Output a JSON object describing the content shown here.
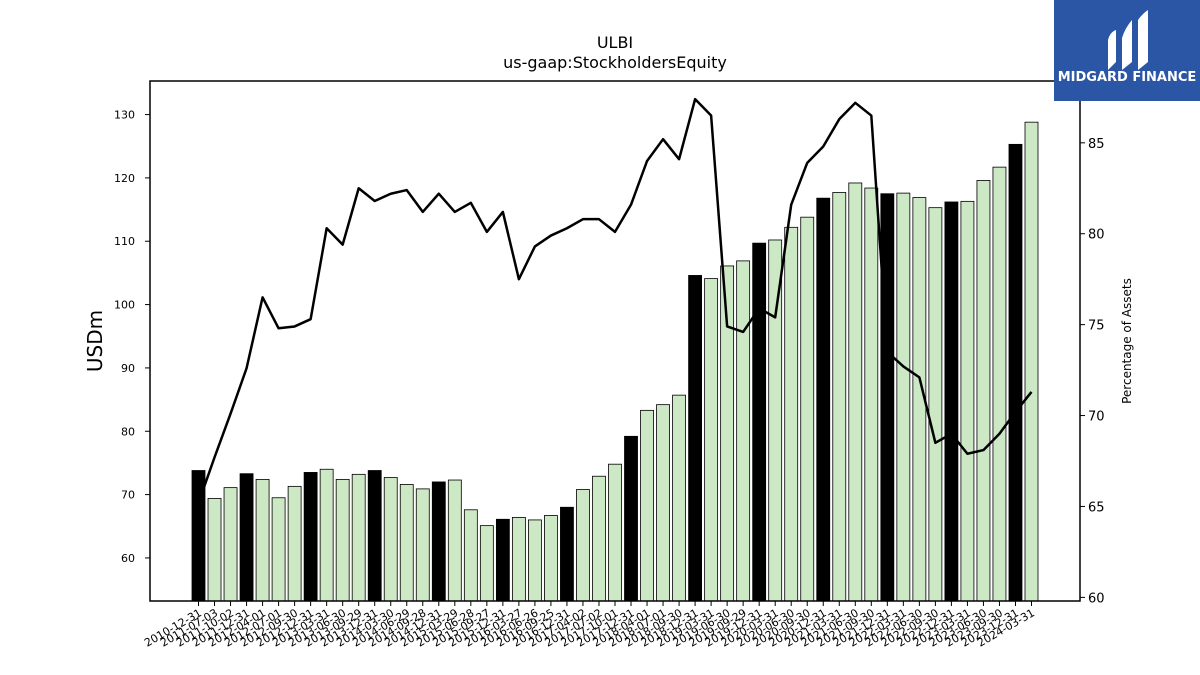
{
  "logo": {
    "text": "MIDGARD FINANCE",
    "bg": "#2b55a5"
  },
  "colors": {
    "annual_bar": "#000000",
    "quarterly_bar": "#cde8c4",
    "line": "#000000"
  },
  "chart_data": {
    "type": "bar",
    "title": "ULBI",
    "subtitle": "us-gaap:StockholdersEquity",
    "ylabel": "USDm",
    "y2label": "Percentage of Assets",
    "ylim": [
      53.2,
      135.3
    ],
    "y2lim": [
      59.8,
      88.4
    ],
    "yticks": [
      60,
      70,
      80,
      90,
      100,
      110,
      120,
      130
    ],
    "y2ticks": [
      60,
      65,
      70,
      75,
      80,
      85
    ],
    "grid": false,
    "categories": [
      "2010-12-31",
      "2011-07-03",
      "2011-10-02",
      "2011-12-31",
      "2012-04-01",
      "2012-07-01",
      "2012-09-30",
      "2012-12-31",
      "2013-03-31",
      "2013-06-30",
      "2013-09-29",
      "2013-12-31",
      "2014-03-30",
      "2014-06-29",
      "2014-09-28",
      "2014-12-31",
      "2015-03-29",
      "2015-06-28",
      "2015-09-27",
      "2015-12-31",
      "2016-03-27",
      "2016-06-26",
      "2016-09-25",
      "2016-12-31",
      "2017-04-02",
      "2017-07-02",
      "2017-10-01",
      "2017-12-31",
      "2018-04-01",
      "2018-07-01",
      "2018-09-30",
      "2018-12-31",
      "2019-03-31",
      "2019-06-30",
      "2019-09-29",
      "2019-12-31",
      "2020-03-31",
      "2020-06-30",
      "2020-09-30",
      "2020-12-31",
      "2021-03-31",
      "2021-06-30",
      "2021-09-30",
      "2021-12-31",
      "2022-03-31",
      "2022-06-30",
      "2022-09-30",
      "2022-12-31",
      "2023-03-31",
      "2023-06-30",
      "2023-09-30",
      "2023-12-31",
      "2024-03-31"
    ],
    "series": [
      {
        "kind": "bar",
        "values": [
          73.8,
          69.4,
          71.1,
          73.3,
          72.4,
          69.5,
          71.3,
          73.5,
          74.0,
          72.4,
          73.2,
          73.8,
          72.7,
          71.6,
          70.9,
          72.0,
          72.3,
          67.6,
          65.1,
          66.1,
          66.4,
          66.0,
          66.7,
          68.0,
          70.8,
          72.9,
          74.8,
          79.2,
          83.3,
          84.2,
          85.7,
          104.6,
          104.1,
          106.1,
          106.9,
          109.7,
          110.2,
          112.2,
          113.8,
          116.8,
          117.7,
          119.2,
          118.4,
          117.5,
          117.6,
          116.9,
          115.3,
          116.2,
          116.3,
          119.6,
          121.7,
          125.3,
          128.8
        ],
        "annual_flags": [
          1,
          0,
          0,
          1,
          0,
          0,
          0,
          1,
          0,
          0,
          0,
          1,
          0,
          0,
          0,
          1,
          0,
          0,
          0,
          1,
          0,
          0,
          0,
          1,
          0,
          0,
          0,
          1,
          0,
          0,
          0,
          1,
          0,
          0,
          0,
          1,
          0,
          0,
          0,
          1,
          0,
          0,
          0,
          1,
          0,
          0,
          0,
          1,
          0,
          0,
          0,
          1,
          0
        ]
      },
      {
        "kind": "line",
        "axis": "right",
        "values": [
          65.2,
          67.7,
          70.1,
          72.6,
          76.5,
          74.8,
          74.9,
          75.3,
          80.3,
          79.4,
          82.5,
          81.8,
          82.2,
          82.4,
          81.2,
          82.2,
          81.2,
          81.7,
          80.1,
          81.2,
          77.5,
          79.3,
          79.9,
          80.3,
          80.8,
          80.8,
          80.1,
          81.6,
          84.0,
          85.2,
          84.1,
          87.4,
          86.5,
          74.9,
          74.6,
          75.9,
          75.4,
          81.6,
          83.9,
          84.8,
          86.3,
          87.2,
          86.5,
          73.5,
          72.7,
          72.1,
          68.5,
          69.0,
          67.9,
          68.1,
          69.0,
          70.2,
          71.3
        ]
      }
    ]
  }
}
